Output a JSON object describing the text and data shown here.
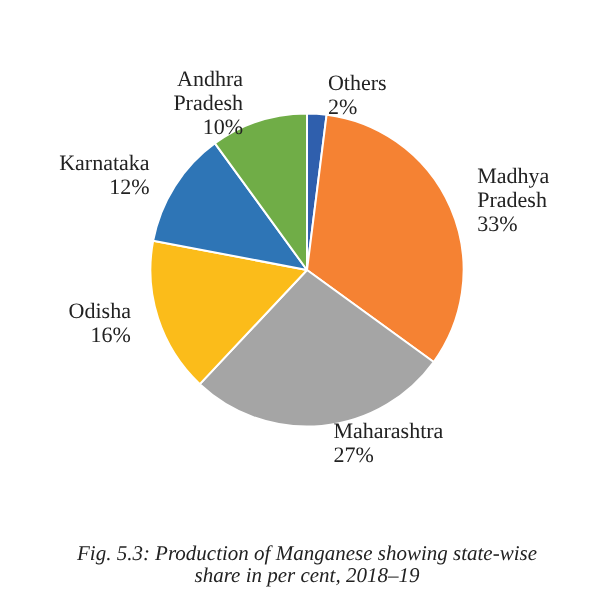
{
  "chart_data": {
    "type": "pie",
    "categories": [
      "Others",
      "Madhya Pradesh",
      "Maharashtra",
      "Odisha",
      "Karnataka",
      "Andhra Pradesh"
    ],
    "values": [
      2,
      33,
      27,
      16,
      12,
      10
    ],
    "value_labels": [
      "2%",
      "33%",
      "27%",
      "16%",
      "12%",
      "10%"
    ],
    "colors": [
      "#2f5fad",
      "#f58233",
      "#a5a5a5",
      "#fbbc1a",
      "#2e75b6",
      "#70ad47"
    ],
    "annotations": [
      "Fig. 5.3: Production of Manganese showing state-wise share in per cent, 2018–19"
    ]
  }
}
